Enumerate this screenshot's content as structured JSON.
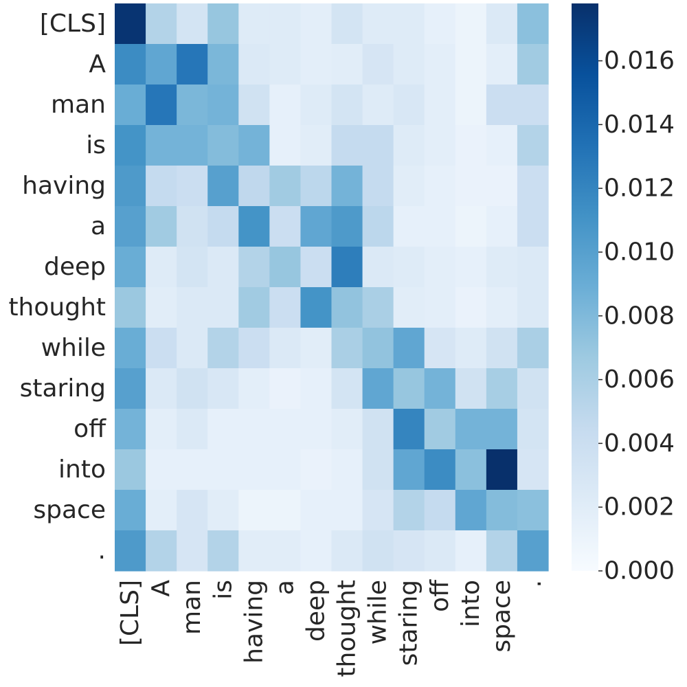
{
  "chart_data": {
    "type": "heatmap",
    "title": "",
    "xlabel": "",
    "ylabel": "",
    "x_labels": [
      "[CLS]",
      "A",
      "man",
      "is",
      "having",
      "a",
      "deep",
      "thought",
      "while",
      "staring",
      "off",
      "into",
      "space",
      "."
    ],
    "y_labels": [
      "[CLS]",
      "A",
      "man",
      "is",
      "having",
      "a",
      "deep",
      "thought",
      "while",
      "staring",
      "off",
      "into",
      "space",
      "."
    ],
    "values": [
      [
        0.0175,
        0.0055,
        0.0032,
        0.007,
        0.0022,
        0.0022,
        0.0018,
        0.0032,
        0.0022,
        0.0022,
        0.0015,
        0.001,
        0.0025,
        0.0075
      ],
      [
        0.0115,
        0.0095,
        0.013,
        0.0082,
        0.0025,
        0.0022,
        0.0018,
        0.002,
        0.003,
        0.0022,
        0.0018,
        0.001,
        0.0018,
        0.0065
      ],
      [
        0.009,
        0.013,
        0.0082,
        0.0085,
        0.0035,
        0.0015,
        0.0022,
        0.0032,
        0.0022,
        0.0028,
        0.0018,
        0.001,
        0.004,
        0.004
      ],
      [
        0.011,
        0.0085,
        0.0085,
        0.0078,
        0.0085,
        0.0015,
        0.002,
        0.0045,
        0.0045,
        0.0022,
        0.0018,
        0.0012,
        0.0015,
        0.0055
      ],
      [
        0.0105,
        0.0045,
        0.004,
        0.01,
        0.0048,
        0.0065,
        0.005,
        0.0085,
        0.0045,
        0.002,
        0.0015,
        0.0012,
        0.0012,
        0.004
      ],
      [
        0.01,
        0.0065,
        0.0035,
        0.0045,
        0.011,
        0.004,
        0.0095,
        0.0105,
        0.005,
        0.0015,
        0.0015,
        0.001,
        0.0015,
        0.004
      ],
      [
        0.009,
        0.0022,
        0.0032,
        0.0025,
        0.0055,
        0.007,
        0.004,
        0.0125,
        0.0025,
        0.0022,
        0.0018,
        0.0015,
        0.0022,
        0.0025
      ],
      [
        0.0068,
        0.002,
        0.0025,
        0.0025,
        0.0065,
        0.004,
        0.011,
        0.0072,
        0.006,
        0.002,
        0.0018,
        0.0012,
        0.0018,
        0.0025
      ],
      [
        0.009,
        0.004,
        0.0025,
        0.0055,
        0.004,
        0.0025,
        0.002,
        0.006,
        0.0072,
        0.0095,
        0.003,
        0.0022,
        0.0035,
        0.006
      ],
      [
        0.01,
        0.0025,
        0.0035,
        0.0028,
        0.0018,
        0.0012,
        0.0015,
        0.0032,
        0.0095,
        0.007,
        0.0085,
        0.0035,
        0.0062,
        0.0035
      ],
      [
        0.0085,
        0.0018,
        0.0025,
        0.0015,
        0.0015,
        0.0015,
        0.0015,
        0.002,
        0.0035,
        0.012,
        0.0065,
        0.0085,
        0.0085,
        0.0032
      ],
      [
        0.0068,
        0.0015,
        0.0015,
        0.0015,
        0.0015,
        0.0015,
        0.0012,
        0.0015,
        0.0035,
        0.0095,
        0.0115,
        0.0075,
        0.0178,
        0.003
      ],
      [
        0.009,
        0.0018,
        0.003,
        0.002,
        0.001,
        0.001,
        0.0015,
        0.0015,
        0.003,
        0.0055,
        0.0045,
        0.0095,
        0.0078,
        0.0075
      ],
      [
        0.0105,
        0.0055,
        0.003,
        0.0055,
        0.002,
        0.002,
        0.0015,
        0.0025,
        0.0035,
        0.003,
        0.0025,
        0.0015,
        0.0055,
        0.01
      ]
    ],
    "vmin": 0,
    "vmax": 0.0178,
    "colormap": "Blues",
    "colorbar_ticks": [
      "0.000",
      "0.002",
      "0.004",
      "0.006",
      "0.008",
      "0.010",
      "0.012",
      "0.014",
      "0.016"
    ],
    "grid": false,
    "colorbar": "right"
  }
}
